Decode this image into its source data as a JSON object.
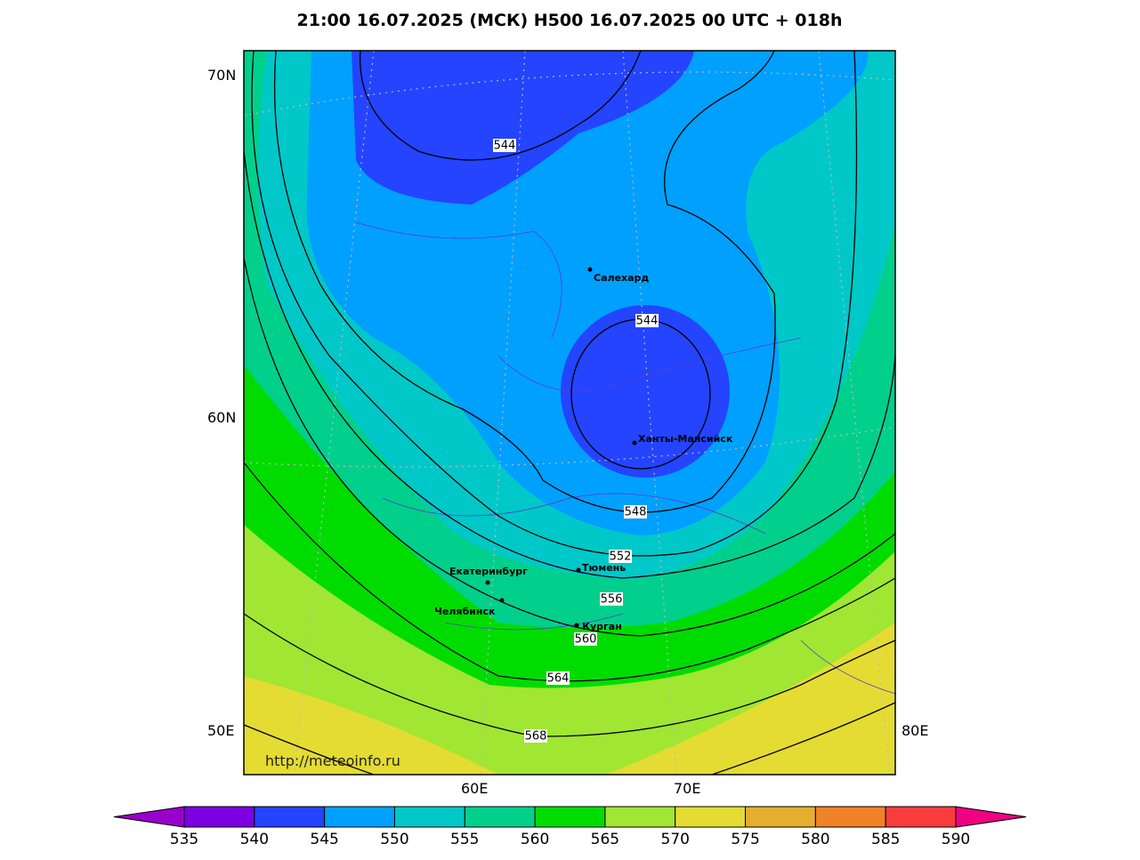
{
  "header": {
    "title": "21:00 16.07.2025 (МСК) H500  16.07.2025 00 UTC + 018h"
  },
  "map": {
    "lat_labels": [
      "70N",
      "60N"
    ],
    "lon_labels": [
      "50E",
      "60E",
      "70E",
      "80E"
    ],
    "contour_labels": [
      544,
      544,
      548,
      552,
      556,
      560,
      564,
      568
    ],
    "cities": [
      "Салехард",
      "Ханты-Мансийск",
      "Екатеринбург",
      "Тюмень",
      "Челябинск",
      "Курган"
    ],
    "url": "http://meteoinfo.ru"
  },
  "colorbar": {
    "levels": [
      535,
      540,
      545,
      550,
      555,
      560,
      565,
      570,
      575,
      580,
      585,
      590
    ],
    "colors": [
      "#9a00cc",
      "#7d00e0",
      "#2444ff",
      "#00a0ff",
      "#00c8c8",
      "#00d08c",
      "#00dc00",
      "#a0e632",
      "#e4dc32",
      "#e6ae2e",
      "#f08228",
      "#fa3c3c",
      "#f00082"
    ]
  }
}
